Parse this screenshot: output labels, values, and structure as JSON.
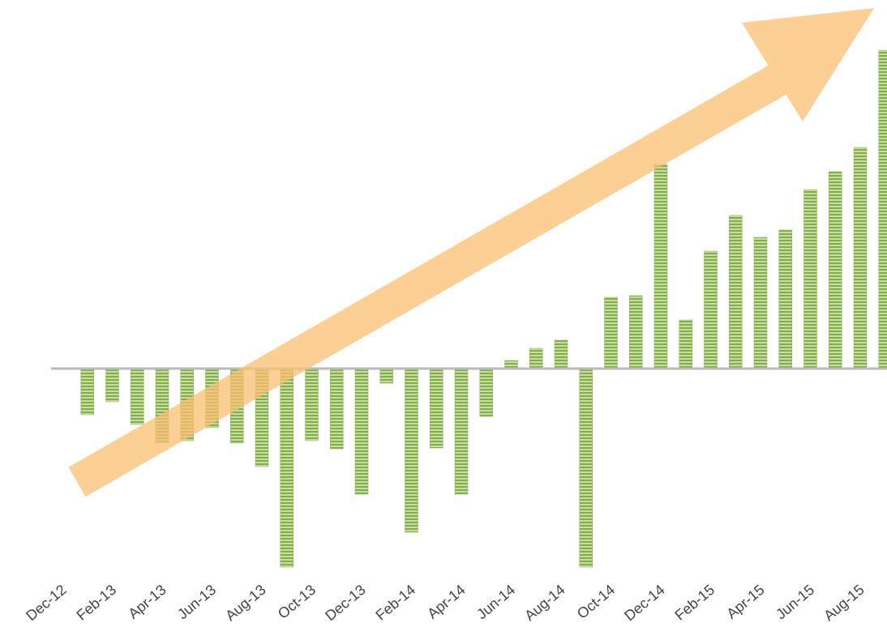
{
  "chart_data": {
    "type": "bar",
    "categories": [
      "Dec-12",
      null,
      "Feb-13",
      null,
      "Apr-13",
      null,
      "Jun-13",
      null,
      "Aug-13",
      null,
      "Oct-13",
      null,
      "Dec-13",
      null,
      "Feb-14",
      null,
      "Apr-14",
      null,
      "Jun-14",
      null,
      "Aug-14",
      null,
      "Oct-14",
      null,
      "Dec-14",
      null,
      "Feb-15",
      null,
      "Apr-15",
      null,
      "Jun-15",
      null,
      "Aug-15",
      null
    ],
    "values": [
      null,
      -57,
      -41,
      -69,
      -92,
      -89,
      -73,
      -92,
      -121,
      -245,
      -89,
      -99,
      -155,
      -18,
      -202,
      -98,
      -155,
      -59,
      10,
      25,
      35,
      -245,
      88,
      90,
      252,
      60,
      145,
      189,
      162,
      171,
      221,
      243,
      273,
      393
    ],
    "color": "#8ab552",
    "ylim": [
      -300,
      455
    ]
  }
}
